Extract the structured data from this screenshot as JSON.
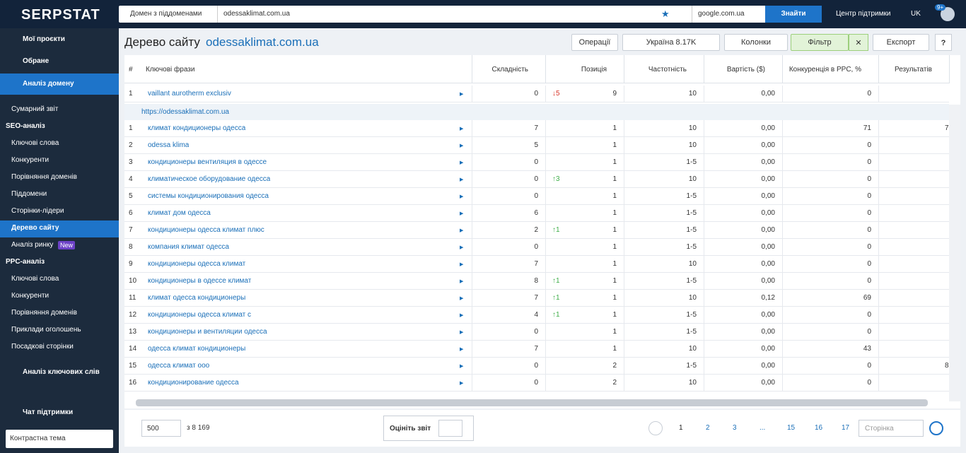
{
  "topbar": {
    "logo": "SERPSTAT",
    "search_type": "Домен з піддоменами",
    "query": "odessaklimat.com.ua",
    "engine": "google.com.ua",
    "search_button": "Знайти",
    "support": "Центр підтримки",
    "language": "UK",
    "notifications": "9+"
  },
  "sidebar": {
    "main": [
      "Мої проєкти",
      "Обране",
      "Аналіз домену"
    ],
    "summary": "Сумарний звіт",
    "seo_title": "SEO-аналіз",
    "seo_items": [
      "Ключові слова",
      "Конкуренти",
      "Порівняння доменів",
      "Піддомени",
      "Сторінки-лідери",
      "Дерево сайту",
      "Аналіз ринку"
    ],
    "new_badge": "New",
    "ppc_title": "PPC-аналіз",
    "ppc_items": [
      "Ключові слова",
      "Конкуренти",
      "Порівняння доменів",
      "Приклади оголошень",
      "Посадкові сторінки"
    ],
    "keyword_analysis": "Аналіз ключових слів",
    "chat": "Чат підтримки",
    "theme": "Контрастна тема"
  },
  "header": {
    "title": "Дерево сайту",
    "domain": "odessaklimat.com.ua",
    "buttons": {
      "operations": "Операції",
      "region": "Україна 8.17K",
      "columns": "Колонки",
      "filter": "Фільтр",
      "export": "Експорт"
    }
  },
  "table": {
    "columns": [
      "#",
      "Ключові фрази",
      "Складність",
      "Позиція",
      "Частотність",
      "Вартість ($)",
      "Конкуренція в PPC, %",
      "Результатів"
    ],
    "top_row": [
      1,
      "vaillant aurotherm exclusiv",
      0,
      "↓5",
      9,
      "10",
      "0,00",
      0,
      null
    ],
    "group": "https://odessaklimat.com.ua",
    "rows": [
      [
        1,
        "климат кондиционеры одесса",
        7,
        null,
        1,
        "10",
        "0,00",
        71,
        "7"
      ],
      [
        2,
        "odessa klima",
        5,
        null,
        1,
        "10",
        "0,00",
        0,
        null
      ],
      [
        3,
        "кондиционеры вентиляция в одессе",
        0,
        null,
        1,
        "1-5",
        "0,00",
        0,
        null
      ],
      [
        4,
        "климатическое оборудование одесса",
        0,
        "↑3",
        1,
        "10",
        "0,00",
        0,
        null
      ],
      [
        5,
        "системы кондиционирования одесса",
        0,
        null,
        1,
        "1-5",
        "0,00",
        0,
        null
      ],
      [
        6,
        "климат дом одесса",
        6,
        null,
        1,
        "1-5",
        "0,00",
        0,
        null
      ],
      [
        7,
        "кондиционеры одесса климат плюс",
        2,
        "↑1",
        1,
        "1-5",
        "0,00",
        0,
        null
      ],
      [
        8,
        "компания климат одесса",
        0,
        null,
        1,
        "1-5",
        "0,00",
        0,
        null
      ],
      [
        9,
        "кондиционеры одесса климат",
        7,
        null,
        1,
        "10",
        "0,00",
        0,
        null
      ],
      [
        10,
        "кондиционеры в одессе климат",
        8,
        "↑1",
        1,
        "1-5",
        "0,00",
        0,
        null
      ],
      [
        11,
        "климат одесса кондиционеры",
        7,
        "↑1",
        1,
        "10",
        "0,12",
        69,
        null
      ],
      [
        12,
        "кондиционеры одесса климат с",
        4,
        "↑1",
        1,
        "1-5",
        "0,00",
        0,
        null
      ],
      [
        13,
        "кондиционеры и вентиляции одесса",
        0,
        null,
        1,
        "1-5",
        "0,00",
        0,
        null
      ],
      [
        14,
        "одесса климат кондиционеры",
        7,
        null,
        1,
        "10",
        "0,00",
        43,
        null
      ],
      [
        15,
        "одесса климат ооо",
        0,
        null,
        2,
        "1-5",
        "0,00",
        0,
        "8"
      ],
      [
        16,
        "кондиционирование одесса",
        0,
        null,
        2,
        "10",
        "0,00",
        0,
        null
      ]
    ]
  },
  "footer": {
    "page_size": "500",
    "total": "з 8 169",
    "rate": "Оцініть звіт",
    "pages": [
      "1",
      "2",
      "3",
      "...",
      "15",
      "16",
      "17"
    ],
    "page_input": "Сторінка"
  }
}
